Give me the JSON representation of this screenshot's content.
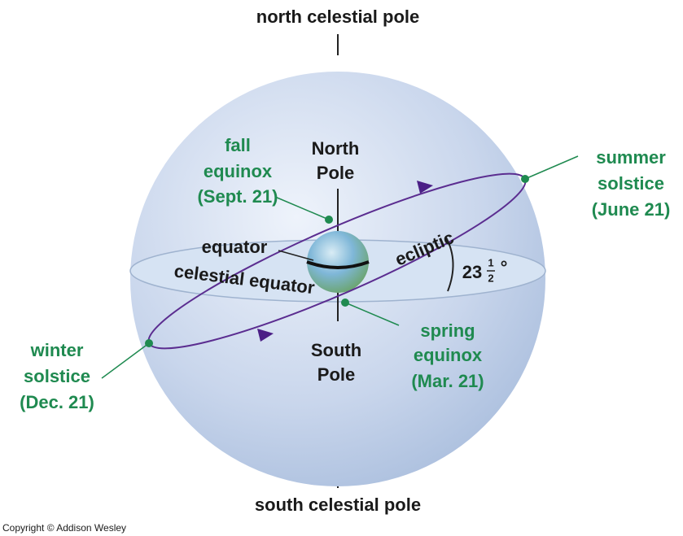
{
  "title_top": "north celestial pole",
  "title_bottom": "south celestial pole",
  "north_pole": [
    "North",
    "Pole"
  ],
  "south_pole": [
    "South",
    "Pole"
  ],
  "fall_equinox": [
    "fall",
    "equinox",
    "(Sept. 21)"
  ],
  "summer_solstice": [
    "summer",
    "solstice",
    "(June 21)"
  ],
  "winter_solstice": [
    "winter",
    "solstice",
    "(Dec. 21)"
  ],
  "spring_equinox": [
    "spring",
    "equinox",
    "(Mar. 21)"
  ],
  "equator": "equator",
  "celestial_equator": "celestial equator",
  "ecliptic": "ecliptic",
  "tilt": {
    "whole": "23",
    "numerator": "1",
    "denominator": "2",
    "unit": "°"
  },
  "copyright": "Copyright © Addison Wesley"
}
